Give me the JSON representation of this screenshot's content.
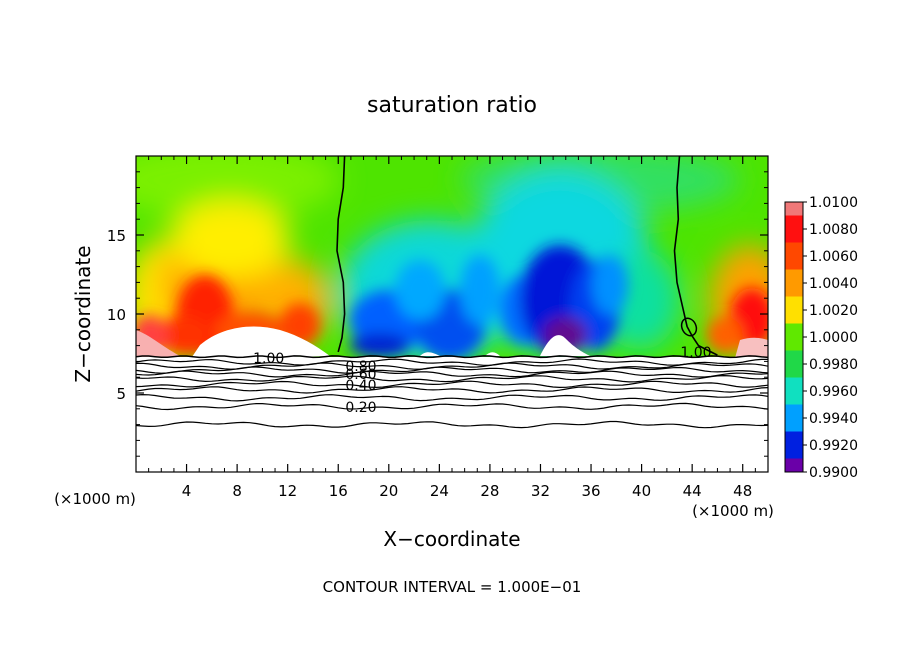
{
  "chart_data": {
    "type": "heatmap",
    "title": "saturation ratio",
    "xlabel": "X−coordinate",
    "ylabel": "Z−coordinate",
    "x_units": "(×1000 m)",
    "x_units_right": "(×1000 m)",
    "xlim": [
      0,
      50
    ],
    "ylim": [
      0,
      20
    ],
    "x_ticks": [
      4,
      8,
      12,
      16,
      20,
      24,
      28,
      32,
      36,
      40,
      44,
      48
    ],
    "y_ticks": [
      5,
      10,
      15
    ],
    "footer": "CONTOUR INTERVAL = 1.000E−01",
    "colorbar": {
      "levels": [
        "1.0100",
        "1.0080",
        "1.0060",
        "1.0040",
        "1.0020",
        "1.0000",
        "0.9980",
        "0.9960",
        "0.9940",
        "0.9920",
        "0.9900"
      ],
      "colors": [
        "#f06a6a",
        "#ff1010",
        "#ff5a00",
        "#ffaa00",
        "#ffff00",
        "#7cf000",
        "#20e020",
        "#10e0a0",
        "#00d8ff",
        "#0070ff",
        "#0018e0",
        "#202080",
        "#7000a0"
      ]
    },
    "contour_labels": [
      {
        "text": "1.00",
        "x": 10.5,
        "z": 7.2
      },
      {
        "text": "0.80",
        "x": 17.8,
        "z": 6.7
      },
      {
        "text": "0.60",
        "x": 17.8,
        "z": 6.2
      },
      {
        "text": "0.40",
        "x": 17.8,
        "z": 5.5
      },
      {
        "text": "0.20",
        "x": 17.8,
        "z": 4.1
      },
      {
        "text": "1.00",
        "x": 44.3,
        "z": 7.6
      }
    ],
    "contours_1_00": [
      {
        "name": "left",
        "points": [
          [
            16.5,
            20
          ],
          [
            16.4,
            18
          ],
          [
            16.0,
            16
          ],
          [
            15.9,
            14
          ],
          [
            16.4,
            12
          ],
          [
            16.5,
            10
          ],
          [
            16.3,
            8.5
          ],
          [
            16.0,
            7.6
          ]
        ]
      },
      {
        "name": "right",
        "points": [
          [
            43.0,
            20
          ],
          [
            42.8,
            18
          ],
          [
            42.9,
            16
          ],
          [
            42.6,
            14
          ],
          [
            42.8,
            12
          ],
          [
            43.6,
            9.2
          ],
          [
            44.0,
            8.6
          ],
          [
            44.5,
            8.0
          ],
          [
            46.0,
            7.4
          ]
        ]
      }
    ],
    "surface_z": 7.3,
    "lower_contour_levels_z": [
      6.95,
      6.7,
      6.45,
      6.2,
      5.9,
      5.55,
      5.2,
      4.7,
      4.15,
      3.0
    ]
  }
}
